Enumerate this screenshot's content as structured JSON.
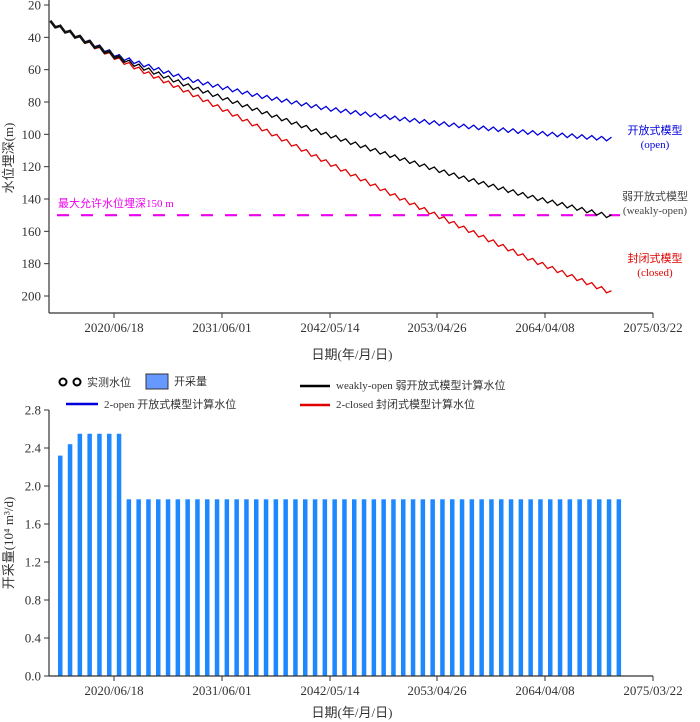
{
  "chart_data": [
    {
      "type": "line",
      "title": "",
      "xlabel": "日期(年/月/日)",
      "ylabel": "水位埋深(m)",
      "y_inverted": true,
      "ylim": [
        20,
        210
      ],
      "yticks": [
        20,
        40,
        60,
        80,
        100,
        120,
        140,
        160,
        180,
        200
      ],
      "xticks": [
        "2020/06/18",
        "2031/06/01",
        "2042/05/14",
        "2053/04/26",
        "2064/04/08",
        "2075/03/22"
      ],
      "xlim_years": [
        2010.9,
        2075.22
      ],
      "x_start_year": 2014.0,
      "x_end_year": 2071.0,
      "observed_end_year": 2021.5,
      "seasonal_amplitude_m": 2.5,
      "series": [
        {
          "name": "开放式模型",
          "sub": "(open)",
          "color": "#0000dd",
          "points": [
            [
              2014,
              31
            ],
            [
              2021,
              52
            ],
            [
              2028,
              66
            ],
            [
              2035,
              76
            ],
            [
              2042,
              84
            ],
            [
              2049,
              90
            ],
            [
              2056,
              95
            ],
            [
              2063,
              99
            ],
            [
              2071,
              103
            ]
          ]
        },
        {
          "name": "弱开放式模型",
          "sub": "(weakly-open)",
          "color": "#000000",
          "points": [
            [
              2014,
              31
            ],
            [
              2021,
              53
            ],
            [
              2028,
              70
            ],
            [
              2035,
              85
            ],
            [
              2042,
              100
            ],
            [
              2049,
              114
            ],
            [
              2056,
              127
            ],
            [
              2063,
              139
            ],
            [
              2071,
              151
            ]
          ]
        },
        {
          "name": "封闭式模型",
          "sub": "(closed)",
          "color": "#e00000",
          "points": [
            [
              2014,
              31
            ],
            [
              2021,
              54
            ],
            [
              2028,
              74
            ],
            [
              2035,
              95
            ],
            [
              2042,
              117
            ],
            [
              2049,
              138
            ],
            [
              2056,
              158
            ],
            [
              2063,
              178
            ],
            [
              2071,
              198
            ]
          ]
        }
      ],
      "threshold": {
        "value": 150,
        "label": "最大允许水位埋深150 m",
        "color": "#ee00ee"
      }
    },
    {
      "type": "bar",
      "title": "",
      "xlabel": "日期(年/月/日)",
      "ylabel": "开采量(10⁴ m³/d)",
      "ylim": [
        0,
        2.8
      ],
      "yticks": [
        "0.0",
        "0.4",
        "0.8",
        "1.2",
        "1.6",
        "2.0",
        "2.4",
        "2.8"
      ],
      "xticks": [
        "2020/06/18",
        "2031/06/01",
        "2042/05/14",
        "2053/04/26",
        "2064/04/08",
        "2075/03/22"
      ],
      "bar_color": "#1e88ff",
      "bar_start_year": 2014,
      "values": [
        2.32,
        2.44,
        2.55,
        2.55,
        2.55,
        2.55,
        2.55,
        1.86,
        1.86,
        1.86,
        1.86,
        1.86,
        1.86,
        1.86,
        1.86,
        1.86,
        1.86,
        1.86,
        1.86,
        1.86,
        1.86,
        1.86,
        1.86,
        1.86,
        1.86,
        1.86,
        1.86,
        1.86,
        1.86,
        1.86,
        1.86,
        1.86,
        1.86,
        1.86,
        1.86,
        1.86,
        1.86,
        1.86,
        1.86,
        1.86,
        1.86,
        1.86,
        1.86,
        1.86,
        1.86,
        1.86,
        1.86,
        1.86,
        1.86,
        1.86,
        1.86,
        1.86,
        1.86,
        1.86,
        1.86,
        1.86,
        1.86,
        1.86
      ]
    }
  ],
  "legend": {
    "observed": "实测水位",
    "pumping": "开采量",
    "weakly_open": "weakly-open 弱开放式模型计算水位",
    "open": "2-open 开放式模型计算水位",
    "closed": "2-closed 封闭式模型计算水位"
  },
  "colors": {
    "open": "#0000dd",
    "weakly": "#000000",
    "closed": "#e00000",
    "threshold": "#ee00ee",
    "bar": "#1e88ff",
    "bar_legend": "#6699ff"
  }
}
